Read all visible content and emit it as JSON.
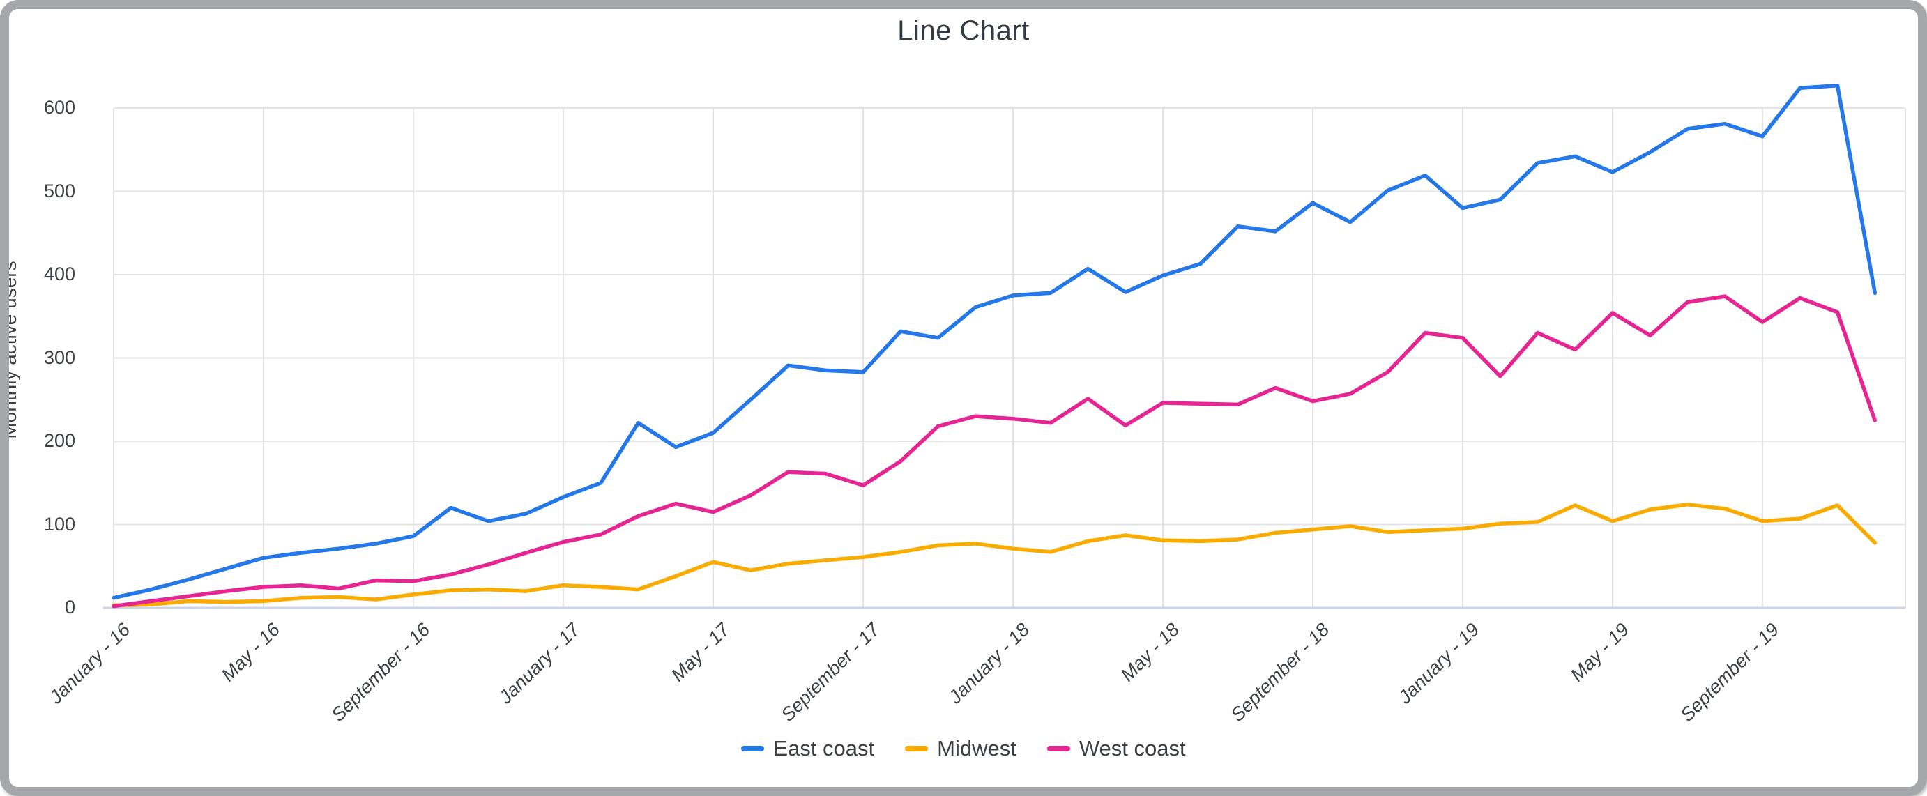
{
  "chart_data": {
    "type": "line",
    "title": "Line Chart",
    "xlabel": "",
    "ylabel": "Monthly active users",
    "ylim": [
      0,
      600
    ],
    "y_ticks": [
      0,
      100,
      200,
      300,
      400,
      500,
      600
    ],
    "x_tick_labels": [
      "January - 16",
      "May - 16",
      "September - 16",
      "January - 17",
      "May - 17",
      "September - 17",
      "January - 18",
      "May - 18",
      "September - 18",
      "January - 19",
      "May - 19",
      "September - 19"
    ],
    "x_tick_point_indices": [
      0,
      4,
      8,
      12,
      16,
      20,
      24,
      28,
      32,
      36,
      40,
      44
    ],
    "n_points": 48,
    "grid": true,
    "legend_position": "bottom",
    "series": [
      {
        "name": "East coast",
        "color": "#2478e8",
        "values": [
          12,
          22,
          34,
          47,
          60,
          66,
          71,
          77,
          86,
          120,
          104,
          113,
          133,
          150,
          222,
          193,
          210,
          250,
          291,
          285,
          283,
          332,
          324,
          361,
          375,
          378,
          407,
          379,
          399,
          413,
          458,
          452,
          486,
          463,
          501,
          519,
          480,
          490,
          534,
          542,
          523,
          547,
          575,
          581,
          566,
          624,
          627,
          378
        ]
      },
      {
        "name": "Midwest",
        "color": "#f9ab00",
        "values": [
          3,
          4,
          8,
          7,
          8,
          12,
          13,
          10,
          16,
          21,
          22,
          20,
          27,
          25,
          22,
          38,
          55,
          45,
          53,
          57,
          61,
          67,
          75,
          77,
          71,
          67,
          80,
          87,
          81,
          80,
          82,
          90,
          94,
          98,
          91,
          93,
          95,
          101,
          103,
          123,
          104,
          118,
          124,
          119,
          104,
          107,
          123,
          78
        ]
      },
      {
        "name": "West coast",
        "color": "#e52592",
        "values": [
          2,
          8,
          14,
          20,
          25,
          27,
          23,
          33,
          32,
          40,
          52,
          66,
          79,
          88,
          110,
          125,
          115,
          135,
          163,
          161,
          147,
          176,
          218,
          230,
          227,
          222,
          251,
          219,
          246,
          245,
          244,
          264,
          248,
          257,
          283,
          330,
          324,
          278,
          330,
          310,
          354,
          327,
          367,
          374,
          343,
          372,
          355,
          225
        ]
      }
    ],
    "colors": {
      "grid": "#e4e4e4",
      "baseline": "#ccd4e6",
      "tick_text": "#3c4043",
      "title_text": "#333b44",
      "frame_border": "#a6a7ab",
      "background": "#ffffff"
    }
  }
}
